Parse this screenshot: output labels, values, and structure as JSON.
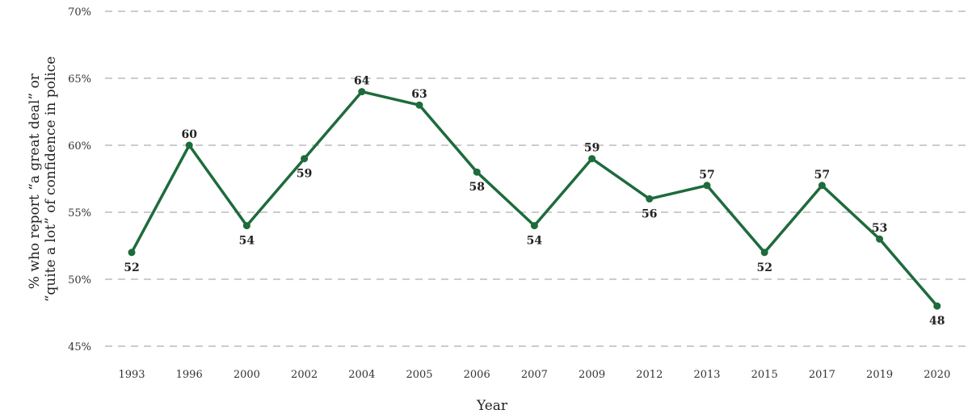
{
  "chart_data": {
    "type": "line",
    "title": "",
    "xlabel": "Year",
    "ylabel_lines": [
      "% who report “a great deal” or",
      "“quite a lot” of confidence in police"
    ],
    "categories": [
      "1993",
      "1996",
      "2000",
      "2002",
      "2004",
      "2005",
      "2006",
      "2007",
      "2009",
      "2012",
      "2013",
      "2015",
      "2017",
      "2019",
      "2020"
    ],
    "series": [
      {
        "values": [
          52,
          60,
          54,
          59,
          64,
          63,
          58,
          54,
          59,
          56,
          57,
          52,
          57,
          53,
          48
        ]
      }
    ],
    "data_labels": [
      "52",
      "60",
      "54",
      "59",
      "64",
      "63",
      "58",
      "54",
      "59",
      "56",
      "57",
      "52",
      "57",
      "53",
      "48"
    ],
    "label_positions": [
      "below",
      "above",
      "below",
      "below",
      "above",
      "above",
      "below",
      "below",
      "above",
      "below",
      "above",
      "below",
      "above",
      "above",
      "below"
    ],
    "ylim": [
      45,
      70
    ],
    "yticks": [
      45,
      50,
      55,
      60,
      65,
      70
    ],
    "ytick_labels": [
      "45%",
      "50%",
      "55%",
      "60%",
      "65%",
      "70%"
    ],
    "grid": true,
    "legend": "none",
    "colors": {
      "line": "#1e6b3c",
      "grid": "#9a9a9a"
    }
  }
}
